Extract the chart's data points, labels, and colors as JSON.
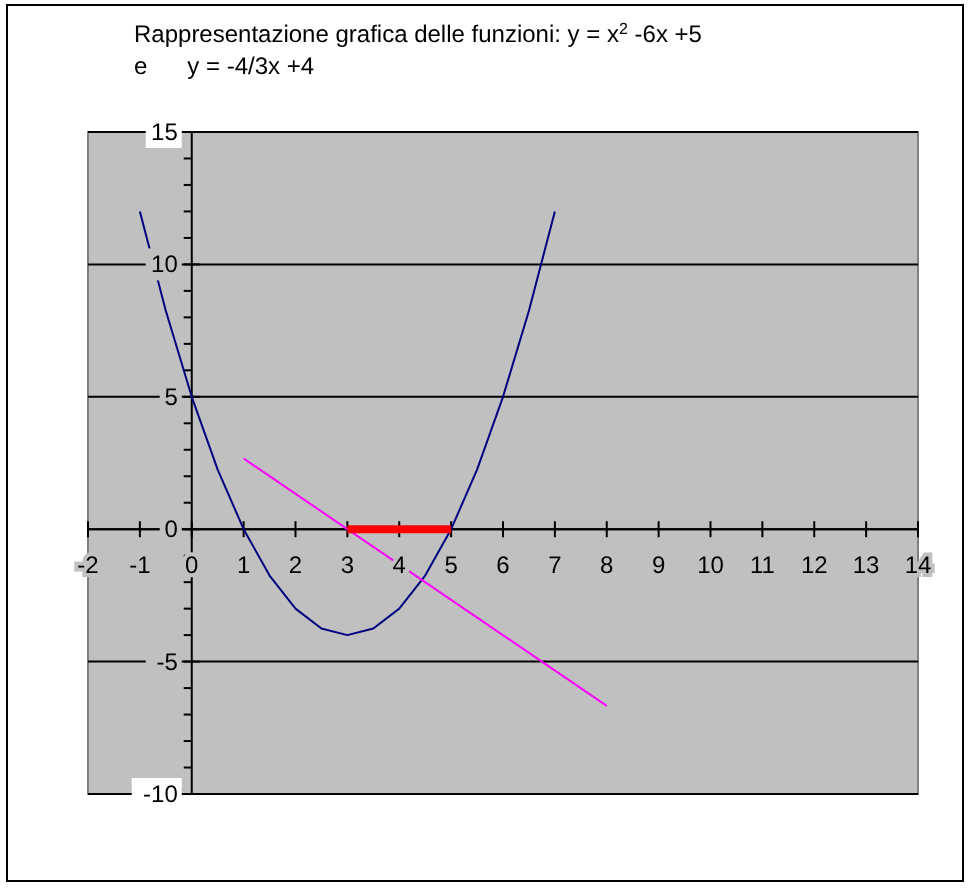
{
  "chart_data": {
    "type": "line",
    "title": "Rappresentazione grafica delle funzioni: y = x$^{2}$ -6x +5",
    "subtitle": "e      y = -4/3x +4",
    "xlim": [
      -2,
      14
    ],
    "ylim": [
      -10,
      15
    ],
    "xticks": [
      -2,
      -1,
      0,
      1,
      2,
      3,
      4,
      5,
      6,
      7,
      8,
      9,
      10,
      11,
      12,
      13,
      14
    ],
    "yticks": [
      -10,
      {
        "value": -9,
        "label": null
      },
      {
        "value": -8,
        "label": null
      },
      {
        "value": -7,
        "label": null
      },
      {
        "value": -6,
        "label": null
      },
      -5,
      {
        "value": -4,
        "label": null
      },
      {
        "value": -3,
        "label": null
      },
      {
        "value": -2,
        "label": null
      },
      {
        "value": -1,
        "label": null
      },
      0,
      {
        "value": 1,
        "label": null
      },
      {
        "value": 2,
        "label": null
      },
      {
        "value": 3,
        "label": null
      },
      {
        "value": 4,
        "label": null
      },
      5,
      {
        "value": 6,
        "label": null
      },
      {
        "value": 7,
        "label": null
      },
      {
        "value": 8,
        "label": null
      },
      {
        "value": 9,
        "label": null
      },
      10,
      {
        "value": 11,
        "label": null
      },
      {
        "value": 12,
        "label": null
      },
      {
        "value": 13,
        "label": null
      },
      {
        "value": 14,
        "label": null
      },
      15
    ],
    "grid": "y",
    "marker": "none",
    "line_style": "solid",
    "series": [
      {
        "color": "#000080",
        "x": [
          -1,
          -0.5,
          0,
          0.5,
          1,
          1.5,
          2,
          2.5,
          3,
          3.5,
          4,
          4.5,
          5,
          5.5,
          6,
          6.5,
          7
        ],
        "values": [
          12,
          8.25,
          5,
          2.25,
          0,
          -1.75,
          -3,
          -3.75,
          -4,
          -3.75,
          -3,
          -1.75,
          0,
          2.25,
          5,
          8.25,
          12
        ]
      },
      {
        "color": "#ff00ff",
        "x": [
          1,
          8
        ],
        "values": [
          2.67,
          -6.67
        ]
      },
      {
        "color": "#ff0000",
        "x": [
          3,
          5
        ],
        "values": [
          0,
          0
        ]
      }
    ]
  }
}
